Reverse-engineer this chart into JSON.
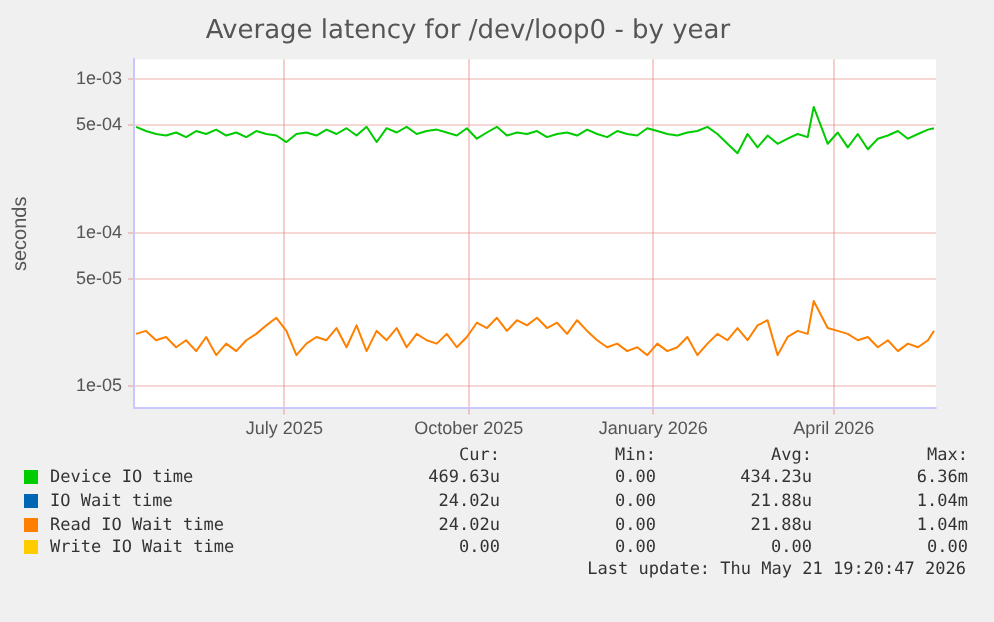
{
  "chart_data": {
    "type": "line",
    "title": "Average latency for /dev/loop0 - by year",
    "ylabel": "seconds",
    "x": [
      "2025-04-18",
      "2025-04-23",
      "2025-04-28",
      "2025-05-03",
      "2025-05-08",
      "2025-05-13",
      "2025-05-18",
      "2025-05-23",
      "2025-05-28",
      "2025-06-02",
      "2025-06-07",
      "2025-06-12",
      "2025-06-17",
      "2025-06-22",
      "2025-06-27",
      "2025-07-02",
      "2025-07-07",
      "2025-07-12",
      "2025-07-17",
      "2025-07-22",
      "2025-07-27",
      "2025-08-01",
      "2025-08-06",
      "2025-08-11",
      "2025-08-16",
      "2025-08-21",
      "2025-08-26",
      "2025-08-31",
      "2025-09-05",
      "2025-09-10",
      "2025-09-15",
      "2025-09-20",
      "2025-09-25",
      "2025-09-30",
      "2025-10-05",
      "2025-10-10",
      "2025-10-15",
      "2025-10-20",
      "2025-10-25",
      "2025-10-30",
      "2025-11-04",
      "2025-11-09",
      "2025-11-14",
      "2025-11-19",
      "2025-11-24",
      "2025-11-29",
      "2025-12-04",
      "2025-12-09",
      "2025-12-14",
      "2025-12-19",
      "2025-12-24",
      "2025-12-29",
      "2026-01-03",
      "2026-01-08",
      "2026-01-13",
      "2026-01-18",
      "2026-01-23",
      "2026-01-28",
      "2026-02-02",
      "2026-02-07",
      "2026-02-12",
      "2026-02-17",
      "2026-02-22",
      "2026-02-27",
      "2026-03-04",
      "2026-03-09",
      "2026-03-14",
      "2026-03-19",
      "2026-03-22",
      "2026-03-29",
      "2026-04-03",
      "2026-04-08",
      "2026-04-13",
      "2026-04-18",
      "2026-04-23",
      "2026-04-28",
      "2026-05-03",
      "2026-05-08",
      "2026-05-13",
      "2026-05-18",
      "2026-05-21"
    ],
    "series": [
      {
        "name": "Device IO time",
        "color": "#00cc00",
        "values": [
          0.00049,
          0.00046,
          0.00044,
          0.00043,
          0.00045,
          0.00042,
          0.00046,
          0.00044,
          0.00047,
          0.00043,
          0.00045,
          0.00042,
          0.00046,
          0.00044,
          0.00043,
          0.00039,
          0.00044,
          0.00045,
          0.00043,
          0.00047,
          0.00044,
          0.00048,
          0.00043,
          0.00049,
          0.00039,
          0.00048,
          0.00045,
          0.00049,
          0.00044,
          0.00046,
          0.00047,
          0.00045,
          0.00043,
          0.00048,
          0.00041,
          0.00045,
          0.00049,
          0.00043,
          0.00045,
          0.00044,
          0.00046,
          0.00042,
          0.00044,
          0.00045,
          0.00043,
          0.00047,
          0.00044,
          0.00042,
          0.00046,
          0.00044,
          0.00043,
          0.00048,
          0.00046,
          0.00044,
          0.00043,
          0.00045,
          0.00046,
          0.00049,
          0.00044,
          0.00038,
          0.00033,
          0.00044,
          0.00036,
          0.00043,
          0.00038,
          0.00041,
          0.00044,
          0.00042,
          0.00066,
          0.00038,
          0.00045,
          0.00036,
          0.00044,
          0.00035,
          0.00041,
          0.00043,
          0.00046,
          0.00041,
          0.00044,
          0.00047,
          0.00048
        ]
      },
      {
        "name": "IO Wait time",
        "color": "#0066b3",
        "values": [
          null,
          null,
          null,
          null,
          null,
          null,
          null,
          null,
          null,
          null,
          null,
          null,
          null,
          null,
          null,
          null,
          null,
          null,
          null,
          null,
          null,
          null,
          null,
          null,
          null,
          null,
          null,
          null,
          null,
          null,
          null,
          null,
          null,
          null,
          null,
          null,
          null,
          null,
          null,
          null,
          null,
          null,
          null,
          null,
          null,
          null,
          null,
          null,
          null,
          null,
          null,
          null,
          null,
          null,
          null,
          null,
          null,
          null,
          null,
          null,
          null,
          null,
          null,
          null,
          null,
          null,
          null,
          null,
          null,
          null,
          null,
          null,
          null,
          null,
          null,
          null,
          null,
          null,
          null,
          null,
          null
        ]
      },
      {
        "name": "Read IO Wait time",
        "color": "#ff8000",
        "values": [
          2.2e-05,
          2.3e-05,
          2e-05,
          2.1e-05,
          1.8e-05,
          2e-05,
          1.7e-05,
          2.1e-05,
          1.6e-05,
          1.9e-05,
          1.7e-05,
          2e-05,
          2.2e-05,
          2.5e-05,
          2.8e-05,
          2.3e-05,
          1.6e-05,
          1.9e-05,
          2.1e-05,
          2e-05,
          2.4e-05,
          1.8e-05,
          2.5e-05,
          1.7e-05,
          2.3e-05,
          2e-05,
          2.4e-05,
          1.8e-05,
          2.2e-05,
          2e-05,
          1.9e-05,
          2.2e-05,
          1.8e-05,
          2.1e-05,
          2.6e-05,
          2.4e-05,
          2.8e-05,
          2.3e-05,
          2.7e-05,
          2.5e-05,
          2.8e-05,
          2.4e-05,
          2.6e-05,
          2.2e-05,
          2.7e-05,
          2.3e-05,
          2e-05,
          1.8e-05,
          1.9e-05,
          1.7e-05,
          1.8e-05,
          1.6e-05,
          1.9e-05,
          1.7e-05,
          1.8e-05,
          2.1e-05,
          1.6e-05,
          1.9e-05,
          2.2e-05,
          2e-05,
          2.4e-05,
          2e-05,
          2.5e-05,
          2.7e-05,
          1.6e-05,
          2.1e-05,
          2.3e-05,
          2.2e-05,
          3.6e-05,
          2.4e-05,
          2.3e-05,
          2.2e-05,
          2e-05,
          2.1e-05,
          1.8e-05,
          2e-05,
          1.7e-05,
          1.9e-05,
          1.8e-05,
          2e-05,
          2.3e-05
        ]
      },
      {
        "name": "Write IO Wait time",
        "color": "#ffcc00",
        "values": [
          null,
          null,
          null,
          null,
          null,
          null,
          null,
          null,
          null,
          null,
          null,
          null,
          null,
          null,
          null,
          null,
          null,
          null,
          null,
          null,
          null,
          null,
          null,
          null,
          null,
          null,
          null,
          null,
          null,
          null,
          null,
          null,
          null,
          null,
          null,
          null,
          null,
          null,
          null,
          null,
          null,
          null,
          null,
          null,
          null,
          null,
          null,
          null,
          null,
          null,
          null,
          null,
          null,
          null,
          null,
          null,
          null,
          null,
          null,
          null,
          null,
          null,
          null,
          null,
          null,
          null,
          null,
          null,
          null,
          null,
          null,
          null,
          null,
          null,
          null,
          null,
          null,
          null,
          null,
          null,
          null
        ]
      }
    ],
    "xlim": [
      "2025-04-17",
      "2026-05-22"
    ],
    "xticks": [
      {
        "value": "2025-07-01",
        "label": "July 2025"
      },
      {
        "value": "2025-10-01",
        "label": "October 2025"
      },
      {
        "value": "2026-01-01",
        "label": "January 2026"
      },
      {
        "value": "2026-04-01",
        "label": "April 2026"
      }
    ],
    "ylim": [
      7.2e-06,
      0.00135
    ],
    "yticks": [
      {
        "value": 1e-05,
        "label": "1e-05"
      },
      {
        "value": 5e-05,
        "label": "5e-05"
      },
      {
        "value": 0.0001,
        "label": "1e-04"
      },
      {
        "value": 0.0005,
        "label": "5e-04"
      },
      {
        "value": 0.001,
        "label": "1e-03"
      }
    ],
    "log": "y",
    "grid": true,
    "legend": "bottom",
    "marker": "none",
    "line_style": "solid",
    "annotations": [
      "Cur:",
      "Min:",
      "Avg:",
      "Max:",
      "469.63u",
      "0.00",
      "434.23u",
      "6.36m",
      "24.02u",
      "0.00",
      "21.88u",
      "1.04m",
      "24.02u",
      "0.00",
      "21.88u",
      "1.04m",
      "0.00",
      "0.00",
      "0.00",
      "0.00",
      "Last update: Thu May 21 19:20:47 2026"
    ]
  }
}
